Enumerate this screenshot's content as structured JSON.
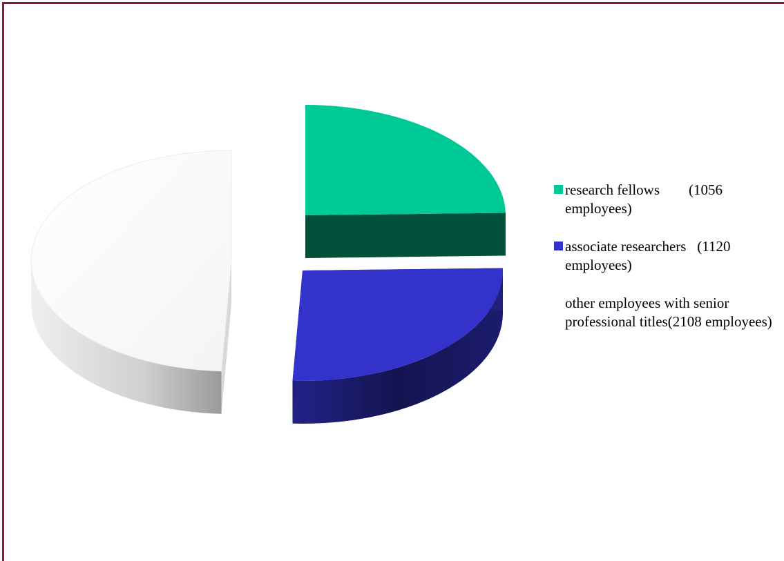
{
  "chart_data": {
    "type": "pie",
    "title": "",
    "legend_position": "right",
    "style": "3d-exploded",
    "slices": [
      {
        "label": "research fellows        (1056 employees)",
        "value": 1056,
        "color": "#00c896",
        "side_color": "#00503a"
      },
      {
        "label": "associate researchers   (1120 employees)",
        "value": 1120,
        "color": "#3333cc",
        "side_color": "#1a1a66"
      },
      {
        "label": "other employees with senior professional titles(2108 employees)",
        "value": 2108,
        "color": "#ffffff",
        "side_color": "#c8c8c8"
      }
    ]
  }
}
